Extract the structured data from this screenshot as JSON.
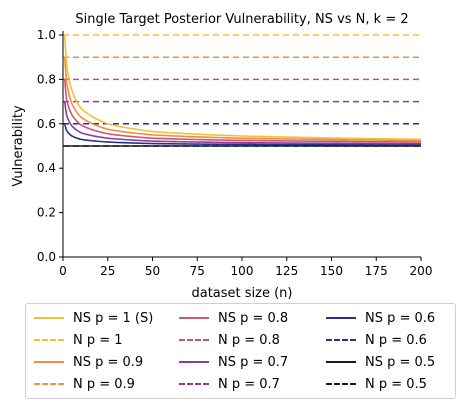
{
  "chart_data": {
    "type": "line",
    "title": "Single Target Posterior Vulnerability, NS vs N, k = 2",
    "xlabel": "dataset size (n)",
    "ylabel": "Vulnerability",
    "xlim": [
      0,
      200
    ],
    "ylim": [
      0,
      1.0
    ],
    "xticks": [
      "0",
      "25",
      "50",
      "75",
      "100",
      "125",
      "150",
      "175",
      "200"
    ],
    "yticks": [
      "0.0",
      "0.2",
      "0.4",
      "0.6",
      "0.8",
      "1.0"
    ],
    "grid": false,
    "legend_position": "below",
    "series": [
      {
        "name": "NS p = 1 (S)",
        "style": "solid",
        "color": "#f2c230",
        "p": 1.0,
        "x": [
          1,
          2,
          5,
          10,
          25,
          50,
          100,
          200
        ],
        "values": [
          1.0,
          0.87,
          0.75,
          0.67,
          0.6,
          0.565,
          0.545,
          0.53
        ]
      },
      {
        "name": "N p = 1",
        "style": "dashed",
        "color": "#f2c230",
        "value": 1.0
      },
      {
        "name": "NS p = 0.9",
        "style": "solid",
        "color": "#f28c45",
        "p": 0.9,
        "x": [
          1,
          2,
          5,
          10,
          25,
          50,
          100,
          200
        ],
        "values": [
          0.9,
          0.79,
          0.69,
          0.63,
          0.575,
          0.55,
          0.535,
          0.525
        ]
      },
      {
        "name": "N p = 0.9",
        "style": "dashed",
        "color": "#f28c45",
        "value": 0.9
      },
      {
        "name": "NS p = 0.8",
        "style": "solid",
        "color": "#cc5577",
        "p": 0.8,
        "x": [
          1,
          2,
          5,
          10,
          25,
          50,
          100,
          200
        ],
        "values": [
          0.8,
          0.71,
          0.64,
          0.595,
          0.555,
          0.535,
          0.525,
          0.518
        ]
      },
      {
        "name": "N p = 0.8",
        "style": "dashed",
        "color": "#cc5577",
        "value": 0.8
      },
      {
        "name": "NS p = 0.7",
        "style": "solid",
        "color": "#8a3e98",
        "p": 0.7,
        "x": [
          1,
          2,
          5,
          10,
          25,
          50,
          100,
          200
        ],
        "values": [
          0.7,
          0.64,
          0.59,
          0.56,
          0.535,
          0.522,
          0.515,
          0.51
        ]
      },
      {
        "name": "N p = 0.7",
        "style": "dashed",
        "color": "#8a3e98",
        "value": 0.7
      },
      {
        "name": "NS p = 0.6",
        "style": "solid",
        "color": "#2b2f8f",
        "p": 0.6,
        "x": [
          1,
          2,
          5,
          10,
          25,
          50,
          100,
          200
        ],
        "values": [
          0.6,
          0.57,
          0.545,
          0.53,
          0.518,
          0.511,
          0.507,
          0.505
        ]
      },
      {
        "name": "N p = 0.6",
        "style": "dashed",
        "color": "#2b2f8f",
        "value": 0.6
      },
      {
        "name": "NS p = 0.5",
        "style": "solid",
        "color": "#0f1f1c",
        "p": 0.5,
        "x": [
          1,
          2,
          5,
          10,
          25,
          50,
          100,
          200
        ],
        "values": [
          0.5,
          0.5,
          0.5,
          0.5,
          0.5,
          0.5,
          0.5,
          0.5
        ]
      },
      {
        "name": "N p = 0.5",
        "style": "dashed",
        "color": "#0f1f1c",
        "value": 0.5
      }
    ]
  }
}
